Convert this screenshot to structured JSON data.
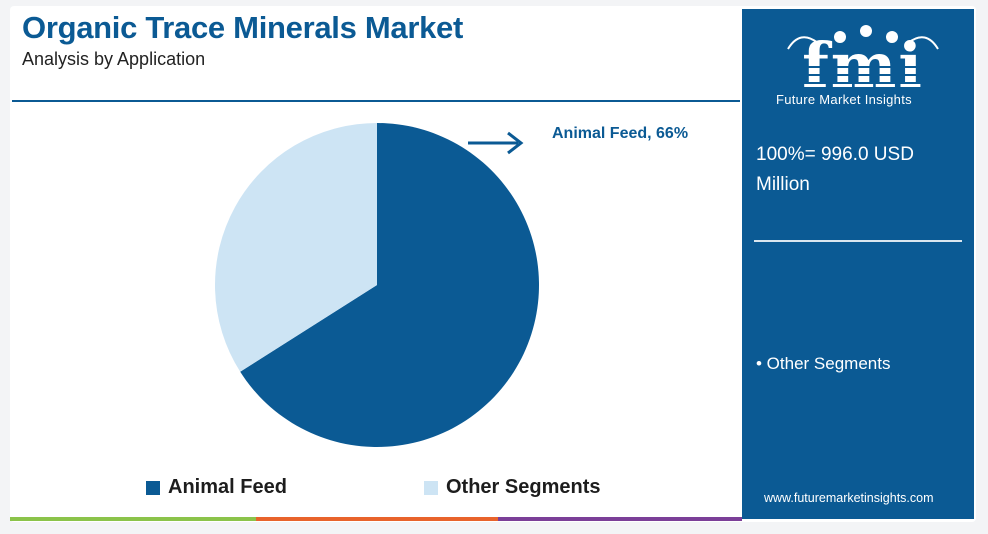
{
  "header": {
    "title": "Organic Trace Minerals Market",
    "subtitle": "Analysis by Application"
  },
  "chart_data": {
    "type": "pie",
    "title": "Organic Trace Minerals Market",
    "subtitle": "Analysis by Application",
    "slices": [
      {
        "label": "Animal Feed",
        "value": 66,
        "color": "#0b5a94"
      },
      {
        "label": "Other Segments",
        "value": 34,
        "color": "#cde4f4"
      }
    ],
    "annotations": [
      "Animal Feed, 66%"
    ],
    "legend_position": "bottom"
  },
  "callout": {
    "label": "Animal Feed, 66%"
  },
  "legend": [
    {
      "label": "Animal Feed",
      "color": "#0b5a94"
    },
    {
      "label": "Other Segments",
      "color": "#cde4f4"
    }
  ],
  "side_panel": {
    "logo_text": "fmi",
    "brand": "Future Market Insights",
    "total": "100%= 996.0 USD Million",
    "segment_item": "• Other Segments",
    "website": "www.futuremarketinsights.com",
    "background": "#0b5a94"
  },
  "bottom_bar_colors": [
    "#8bc34a",
    "#e8632b",
    "#7b3f98"
  ]
}
